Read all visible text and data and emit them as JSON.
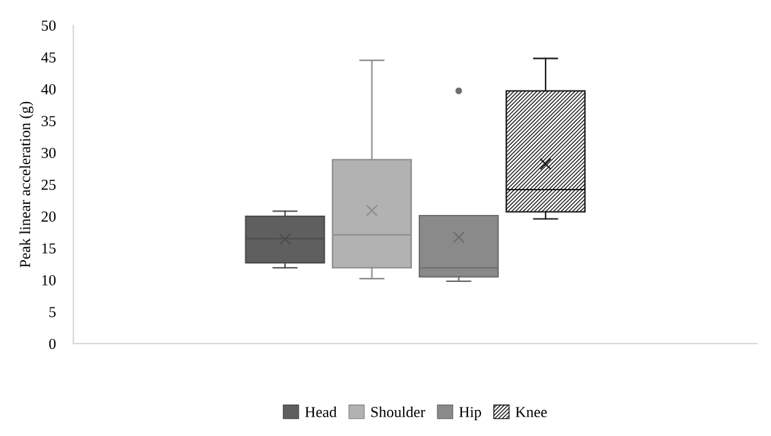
{
  "chart_data": {
    "type": "box",
    "ylabel": "Peak linear acceleration (g)",
    "categories": [
      null
    ],
    "ylim": [
      0,
      50
    ],
    "yticks": [
      0,
      5,
      10,
      15,
      20,
      25,
      30,
      35,
      40,
      45,
      50
    ],
    "grid": false,
    "legend": "bottom",
    "series": [
      {
        "name": "Head",
        "color": "#5f5f5f",
        "boxes": [
          {
            "low": 11.9,
            "q1": 12.7,
            "median": 16.5,
            "q3": 20.0,
            "high": 20.8,
            "mean": 16.4
          }
        ]
      },
      {
        "name": "Shoulder",
        "color": "#b2b2b2",
        "boxes": [
          {
            "low": 10.2,
            "q1": 11.9,
            "median": 17.1,
            "q3": 28.9,
            "high": 44.5,
            "mean": 20.9
          }
        ]
      },
      {
        "name": "Hip",
        "color": "#8a8a8a",
        "boxes": [
          {
            "low": 9.8,
            "q1": 10.5,
            "median": 11.9,
            "q3": 20.1,
            "high": 20.1,
            "mean": 16.7,
            "outliers": [
              39.7
            ]
          }
        ]
      },
      {
        "name": "Knee",
        "color": "#1a1a1a",
        "boxes": [
          {
            "low": 19.6,
            "q1": 20.7,
            "median": 24.2,
            "q3": 39.7,
            "high": 44.8,
            "mean": 28.2
          }
        ]
      }
    ]
  }
}
